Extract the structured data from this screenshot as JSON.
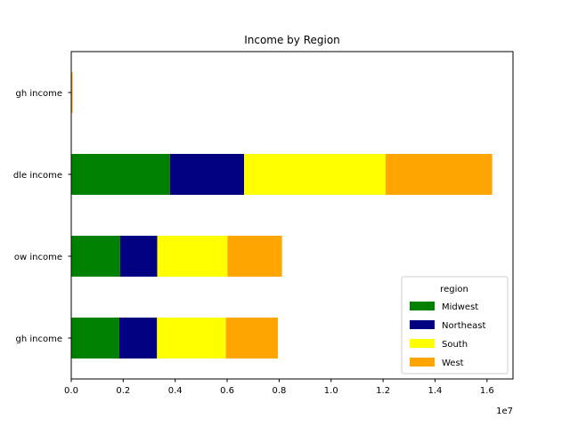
{
  "chart_data": {
    "type": "bar",
    "orientation": "horizontal",
    "stacked": true,
    "title": "Income by Region",
    "xlabel": "",
    "ylabel": "",
    "x_scale_label": "1e7",
    "categories": [
      "High income",
      "Low income",
      "Middle income",
      "Upper middle income"
    ],
    "category_labels_visible": [
      "gh income",
      "ow income",
      "dle income",
      "gh income"
    ],
    "xlim": [
      0,
      17000000
    ],
    "xticks": [
      0,
      2000000,
      4000000,
      6000000,
      8000000,
      10000000,
      12000000,
      14000000,
      16000000
    ],
    "xtick_labels": [
      "0.0",
      "0.2",
      "0.4",
      "0.6",
      "0.8",
      "1.0",
      "1.2",
      "1.4",
      "1.6"
    ],
    "series": [
      {
        "name": "Midwest",
        "color": "#008000",
        "values": [
          1850000,
          1880000,
          3800000,
          0
        ]
      },
      {
        "name": "Northeast",
        "color": "#000080",
        "values": [
          1450000,
          1430000,
          2850000,
          0
        ]
      },
      {
        "name": "South",
        "color": "#ffff00",
        "values": [
          2650000,
          2700000,
          5450000,
          0
        ]
      },
      {
        "name": "West",
        "color": "#ffa500",
        "values": [
          2000000,
          2100000,
          4100000,
          50000
        ]
      }
    ],
    "legend": {
      "title": "region",
      "placement": "lower-right"
    },
    "grid": false
  }
}
